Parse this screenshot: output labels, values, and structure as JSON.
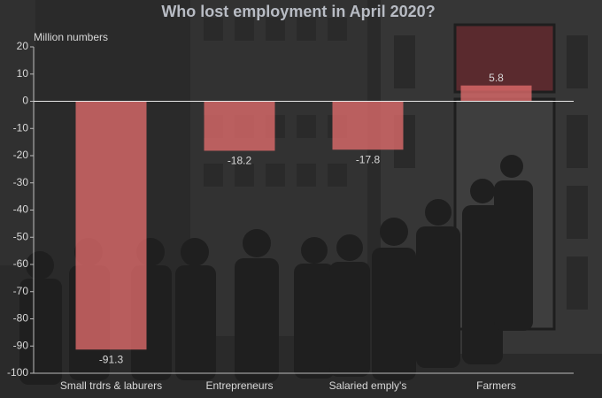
{
  "chart_data": {
    "type": "bar",
    "title": "Who lost employment in April 2020?",
    "y_axis_label": "Million numbers",
    "categories": [
      "Small trdrs & laburers",
      "Entrepreneurs",
      "Salaried emply's",
      "Farmers"
    ],
    "values": [
      -91.3,
      -18.2,
      -17.8,
      5.8
    ],
    "color": "#e06b6b",
    "ylim": [
      -100,
      20
    ],
    "yticks": [
      -100,
      -90,
      -80,
      -70,
      -60,
      -50,
      -40,
      -30,
      -20,
      -10,
      0,
      10,
      20
    ],
    "grid": false
  }
}
